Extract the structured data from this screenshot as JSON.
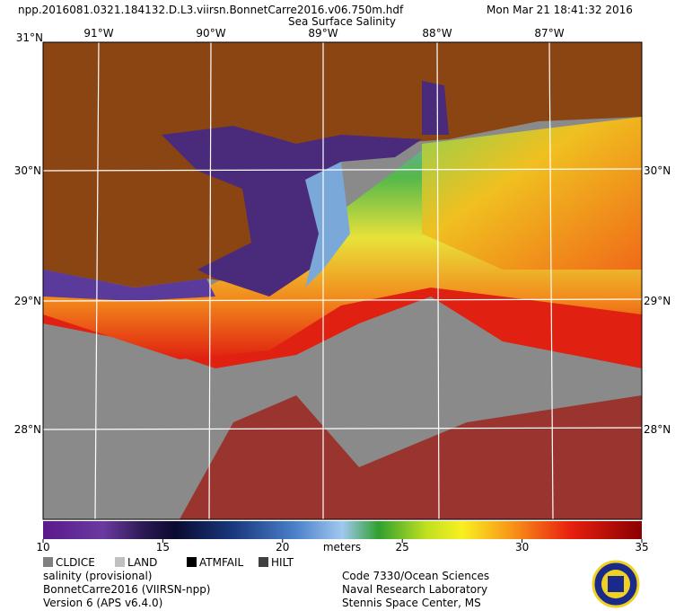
{
  "header": {
    "filename": "npp.2016081.0321.184132.D.L3.viirsn.BonnetCarre2016.v06.750m.hdf",
    "datetime": "Mon Mar 21 18:41:32 2016",
    "title": "Sea Surface Salinity"
  },
  "map": {
    "longitudes": [
      "91°W",
      "90°W",
      "89°W",
      "88°W",
      "87°W"
    ],
    "latitudes": [
      "30°N",
      "29°N",
      "28°N"
    ],
    "corner": "31°N"
  },
  "colorbar": {
    "min": 10,
    "max": 35,
    "ticks": [
      10,
      15,
      20,
      25,
      30,
      35
    ],
    "unit": "meters"
  },
  "legend": [
    {
      "label": "CLDICE",
      "color": "#808080"
    },
    {
      "label": "LAND",
      "color": "#c0c0c0"
    },
    {
      "label": "ATMFAIL",
      "color": "#000000"
    },
    {
      "label": "HILT",
      "color": "#404040"
    }
  ],
  "footer": {
    "left": [
      "salinity (provisional)",
      "BonnetCarre2016 (VIIRSN-npp)",
      "Version 6 (APS v6.4.0)"
    ],
    "right": [
      "Code 7330/Ocean Sciences",
      "Naval Research Laboratory",
      "Stennis Space Center, MS"
    ]
  }
}
